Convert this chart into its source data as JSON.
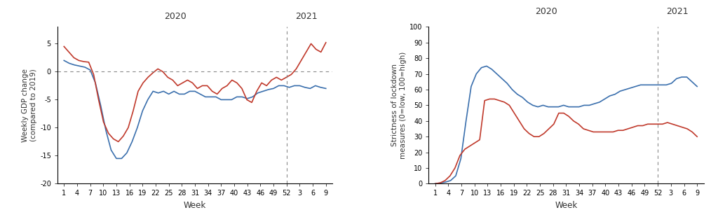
{
  "left_chart": {
    "title_2020": "2020",
    "title_2021": "2021",
    "ylabel": "Weekly GDP change\n(compared to 2019)",
    "xlabel": "Week",
    "ylim": [
      -20,
      8
    ],
    "yticks": [
      -20,
      -15,
      -10,
      -5,
      0,
      5
    ],
    "xtick_labels": [
      "1",
      "4",
      "7",
      "10",
      "13",
      "16",
      "19",
      "22",
      "25",
      "28",
      "31",
      "34",
      "37",
      "40",
      "43",
      "46",
      "49",
      "52",
      "3",
      "6",
      "9"
    ],
    "dashed_line_x": 18,
    "blue_line": [
      2.0,
      1.5,
      1.2,
      1.0,
      0.8,
      0.3,
      -2.0,
      -6.0,
      -10.5,
      -14.0,
      -15.5,
      -15.5,
      -14.5,
      -12.5,
      -10.0,
      -7.0,
      -5.0,
      -3.5,
      -3.8,
      -3.5,
      -4.0,
      -3.5,
      -4.0,
      -4.0,
      -3.5,
      -3.5,
      -4.0,
      -4.5,
      -4.5,
      -4.5,
      -5.0,
      -5.0,
      -5.0,
      -4.5,
      -4.5,
      -4.8,
      -4.5,
      -3.8,
      -3.5,
      -3.2,
      -3.0,
      -2.5,
      -2.5,
      -2.8,
      -2.5,
      -2.5,
      -2.8,
      -3.0,
      -2.5,
      -2.8,
      -3.0
    ],
    "red_line": [
      4.5,
      3.5,
      2.5,
      2.0,
      1.8,
      1.7,
      -0.5,
      -5.0,
      -9.0,
      -11.0,
      -12.0,
      -12.5,
      -11.5,
      -10.0,
      -7.0,
      -3.5,
      -2.0,
      -1.0,
      -0.2,
      0.5,
      0.0,
      -1.0,
      -1.5,
      -2.5,
      -2.0,
      -1.5,
      -2.0,
      -3.0,
      -2.5,
      -2.5,
      -3.5,
      -4.0,
      -3.0,
      -2.5,
      -1.5,
      -2.0,
      -3.0,
      -5.0,
      -5.5,
      -3.5,
      -2.0,
      -2.5,
      -1.5,
      -1.0,
      -1.5,
      -1.0,
      -0.5,
      0.5,
      2.0,
      3.5,
      5.0,
      4.0,
      3.5,
      5.2
    ]
  },
  "right_chart": {
    "title_2020": "2020",
    "title_2021": "2021",
    "ylabel": "Strictness of lockdown\nmeasures (0=low, 100=high)",
    "xlabel": "Week",
    "ylim": [
      0,
      100
    ],
    "yticks": [
      0,
      10,
      20,
      30,
      40,
      50,
      60,
      70,
      80,
      90,
      100
    ],
    "xtick_labels": [
      "1",
      "4",
      "7",
      "10",
      "13",
      "16",
      "19",
      "22",
      "25",
      "28",
      "31",
      "34",
      "37",
      "40",
      "43",
      "46",
      "49",
      "52",
      "3",
      "6",
      "9"
    ],
    "dashed_line_x": 18,
    "blue_line": [
      0,
      0.5,
      1,
      2,
      5,
      16,
      40,
      62,
      70,
      74,
      75,
      73,
      70,
      67,
      64,
      60,
      57,
      55,
      52,
      50,
      49,
      50,
      49,
      49,
      49,
      50,
      49,
      49,
      49,
      50,
      50,
      51,
      52,
      54,
      56,
      57,
      59,
      60,
      61,
      62,
      63,
      63,
      63,
      63,
      63,
      63,
      64,
      67,
      68,
      68,
      65,
      62
    ],
    "red_line": [
      0,
      0.5,
      2,
      5,
      10,
      18,
      22,
      24,
      26,
      28,
      53,
      54,
      54,
      53,
      52,
      50,
      45,
      40,
      35,
      32,
      30,
      30,
      32,
      35,
      38,
      45,
      45,
      43,
      40,
      38,
      35,
      34,
      33,
      33,
      33,
      33,
      33,
      34,
      34,
      35,
      36,
      37,
      37,
      38,
      38,
      38,
      38,
      39,
      38,
      37,
      36,
      35,
      33,
      30
    ]
  },
  "blue_color": "#3a6fad",
  "red_color": "#c0392b",
  "dashed_color": "#888888",
  "zero_line_color": "#888888",
  "background": "#ffffff",
  "label_color": "#333333"
}
